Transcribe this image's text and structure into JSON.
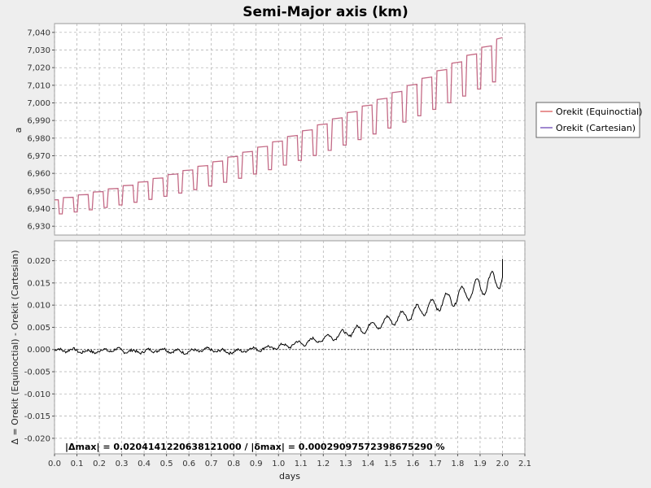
{
  "chart_data": {
    "type": "line",
    "title": "Semi-Major axis (km)",
    "xlabel": "days",
    "xlim": [
      0.0,
      2.1
    ],
    "xticks": [
      "0.0",
      "0.1",
      "0.2",
      "0.3",
      "0.4",
      "0.5",
      "0.6",
      "0.7",
      "0.8",
      "0.9",
      "1.0",
      "1.1",
      "1.2",
      "1.3",
      "1.4",
      "1.5",
      "1.6",
      "1.7",
      "1.8",
      "1.9",
      "2.0",
      "2.1"
    ],
    "grid": true,
    "legend_position": "right",
    "top_panel": {
      "ylabel": "a",
      "ylim": [
        6925,
        7045
      ],
      "yticks": [
        "6,930",
        "6,940",
        "6,950",
        "6,960",
        "6,970",
        "6,980",
        "6,990",
        "7,000",
        "7,010",
        "7,020",
        "7,030",
        "7,040"
      ],
      "series": [
        {
          "name": "Orekit (Equinoctial)",
          "color": "#e07070"
        },
        {
          "name": "Orekit (Cartesian)",
          "color": "#8060c0"
        }
      ],
      "orbit_period_days": 0.0667,
      "sawtooth": {
        "start": {
          "x": 0.0,
          "low": 6937,
          "high": 6945
        },
        "end": {
          "x": 2.0,
          "low": 7016,
          "high": 7037
        }
      }
    },
    "bottom_panel": {
      "ylabel": "Δ = Orekit (Equinoctial) - Orekit (Cartesian)",
      "ylim": [
        -0.0235,
        0.0245
      ],
      "yticks": [
        "-0.020",
        "-0.015",
        "-0.010",
        "-0.005",
        "0.000",
        "0.005",
        "0.010",
        "0.015",
        "0.020"
      ],
      "series": [
        {
          "color": "#000000",
          "end_value": 0.0204
        }
      ],
      "annotation": "|Δmax| = 0.0204141220638121000       /       |δmax| = 0.000290975723986752​90 %"
    }
  }
}
